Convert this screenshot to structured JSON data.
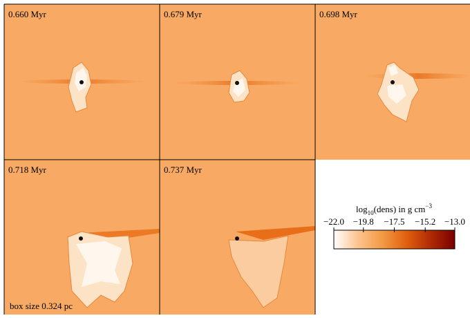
{
  "panels": [
    {
      "label": "0.660 Myr"
    },
    {
      "label": "0.679 Myr"
    },
    {
      "label": "0.698 Myr"
    },
    {
      "label": "0.718 Myr"
    },
    {
      "label": "0.737 Myr"
    }
  ],
  "scale_note": "box size 0.324 pc",
  "colorbar": {
    "label": {
      "func": "log",
      "sub": "10",
      "main": "(dens) in g cm",
      "sup": "−3"
    },
    "lim": [
      -22,
      -13
    ],
    "ticks": [
      {
        "value": -22.0,
        "label": "−22.0"
      },
      {
        "value": -19.8,
        "label": "−19.8"
      },
      {
        "value": -17.5,
        "label": "−17.5"
      },
      {
        "value": -15.2,
        "label": "−15.2"
      },
      {
        "value": -13.0,
        "label": "−13.0"
      }
    ],
    "colormap": [
      "#ffffff",
      "#fbc48e",
      "#f39a45",
      "#e0600e",
      "#b02a04",
      "#7a0000"
    ]
  }
}
